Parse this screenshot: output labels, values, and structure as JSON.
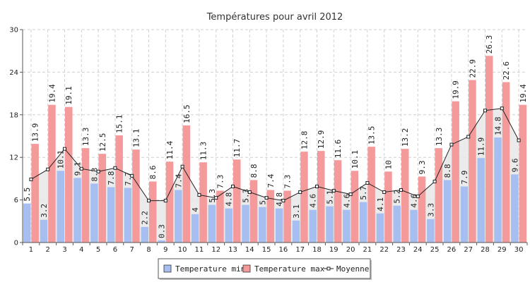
{
  "chart_data": {
    "type": "bar",
    "title": "Températures pour avril 2012",
    "xlabel": "",
    "ylabel": "",
    "ylim": [
      0,
      30
    ],
    "yticks": [
      0,
      6,
      12,
      18,
      24,
      30
    ],
    "grid": true,
    "legend_position": "bottom-center",
    "categories": [
      "1",
      "2",
      "3",
      "4",
      "5",
      "6",
      "7",
      "8",
      "9",
      "10",
      "11",
      "12",
      "13",
      "14",
      "15",
      "16",
      "17",
      "18",
      "19",
      "20",
      "21",
      "22",
      "23",
      "24",
      "25",
      "26",
      "27",
      "28",
      "29",
      "30"
    ],
    "series": [
      {
        "name": "Temperature min",
        "type": "bar",
        "color": "#a6bff0",
        "values": [
          5.5,
          3.2,
          10.1,
          9.1,
          8.3,
          7.8,
          7.7,
          2.2,
          0.3,
          7.4,
          4.0,
          5.3,
          4.8,
          5.3,
          5.0,
          4.8,
          3.1,
          4.6,
          5.1,
          4.6,
          5.7,
          4.1,
          5.2,
          4.6,
          3.3,
          8.8,
          7.9,
          11.9,
          14.8,
          9.6
        ]
      },
      {
        "name": "Temperature max",
        "type": "bar",
        "color": "#f49a9a",
        "values": [
          13.9,
          19.4,
          19.1,
          13.3,
          12.5,
          15.1,
          13.1,
          8.6,
          11.4,
          16.5,
          11.3,
          7.3,
          11.7,
          8.8,
          7.4,
          7.3,
          12.8,
          12.9,
          11.6,
          10.1,
          13.5,
          10.0,
          13.2,
          9.3,
          13.3,
          19.9,
          22.9,
          26.3,
          22.6,
          19.4
        ]
      },
      {
        "name": "Moyenne",
        "type": "line",
        "color": "#222222",
        "fill": "#e8e8e8",
        "values": [
          8.9,
          10.3,
          13.2,
          10.4,
          10.0,
          10.5,
          9.4,
          5.9,
          5.9,
          10.7,
          6.7,
          6.3,
          7.9,
          7.1,
          6.3,
          5.9,
          7.1,
          7.9,
          7.3,
          6.8,
          8.4,
          7.1,
          7.4,
          6.5,
          8.6,
          13.8,
          14.9,
          18.6,
          18.9,
          14.4
        ]
      }
    ]
  }
}
